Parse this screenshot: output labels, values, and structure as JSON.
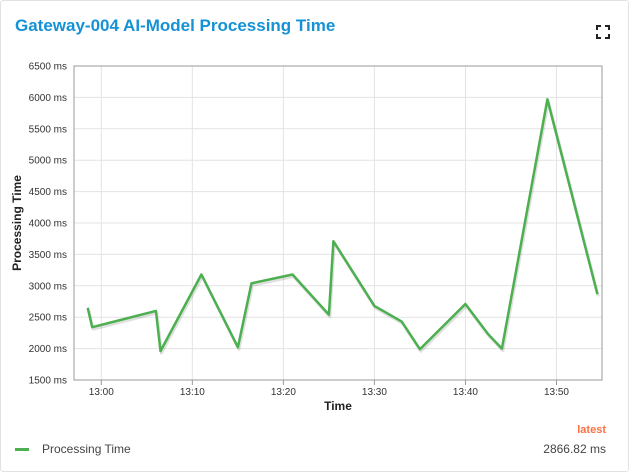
{
  "title": "Gateway-004 AI-Model Processing Time",
  "icons": {
    "expand": "expand-icon"
  },
  "colors": {
    "title": "#1592d6",
    "line": "#4caf50",
    "latest": "#ff7043",
    "grid": "#e3e3e3"
  },
  "legend": {
    "series_name": "Processing Time",
    "latest_label": "latest",
    "latest_value": "2866.82 ms"
  },
  "chart_data": {
    "type": "line",
    "title": "Gateway-004 AI-Model Processing Time",
    "xlabel": "Time",
    "ylabel": "Processing Time",
    "ylim": [
      1500,
      6500
    ],
    "xlim": [
      "12:57",
      "13:55"
    ],
    "yticks": [
      "1500 ms",
      "2000 ms",
      "2500 ms",
      "3000 ms",
      "3500 ms",
      "4000 ms",
      "4500 ms",
      "5000 ms",
      "5500 ms",
      "6000 ms",
      "6500 ms"
    ],
    "xticks": [
      "13:00",
      "13:10",
      "13:20",
      "13:30",
      "13:40",
      "13:50"
    ],
    "grid": true,
    "series": [
      {
        "name": "Processing Time",
        "x": [
          "12:58.5",
          "12:59",
          "13:06",
          "13:06.5",
          "13:11",
          "13:15",
          "13:16.5",
          "13:21",
          "13:25",
          "13:25.5",
          "13:30",
          "13:33",
          "13:35",
          "13:40",
          "13:42.5",
          "13:44",
          "13:49",
          "13:54.5"
        ],
        "y": [
          2650,
          2340,
          2600,
          1960,
          3180,
          2020,
          3040,
          3180,
          2540,
          3710,
          2680,
          2430,
          1990,
          2710,
          2230,
          2000,
          5970,
          2867
        ]
      }
    ]
  }
}
